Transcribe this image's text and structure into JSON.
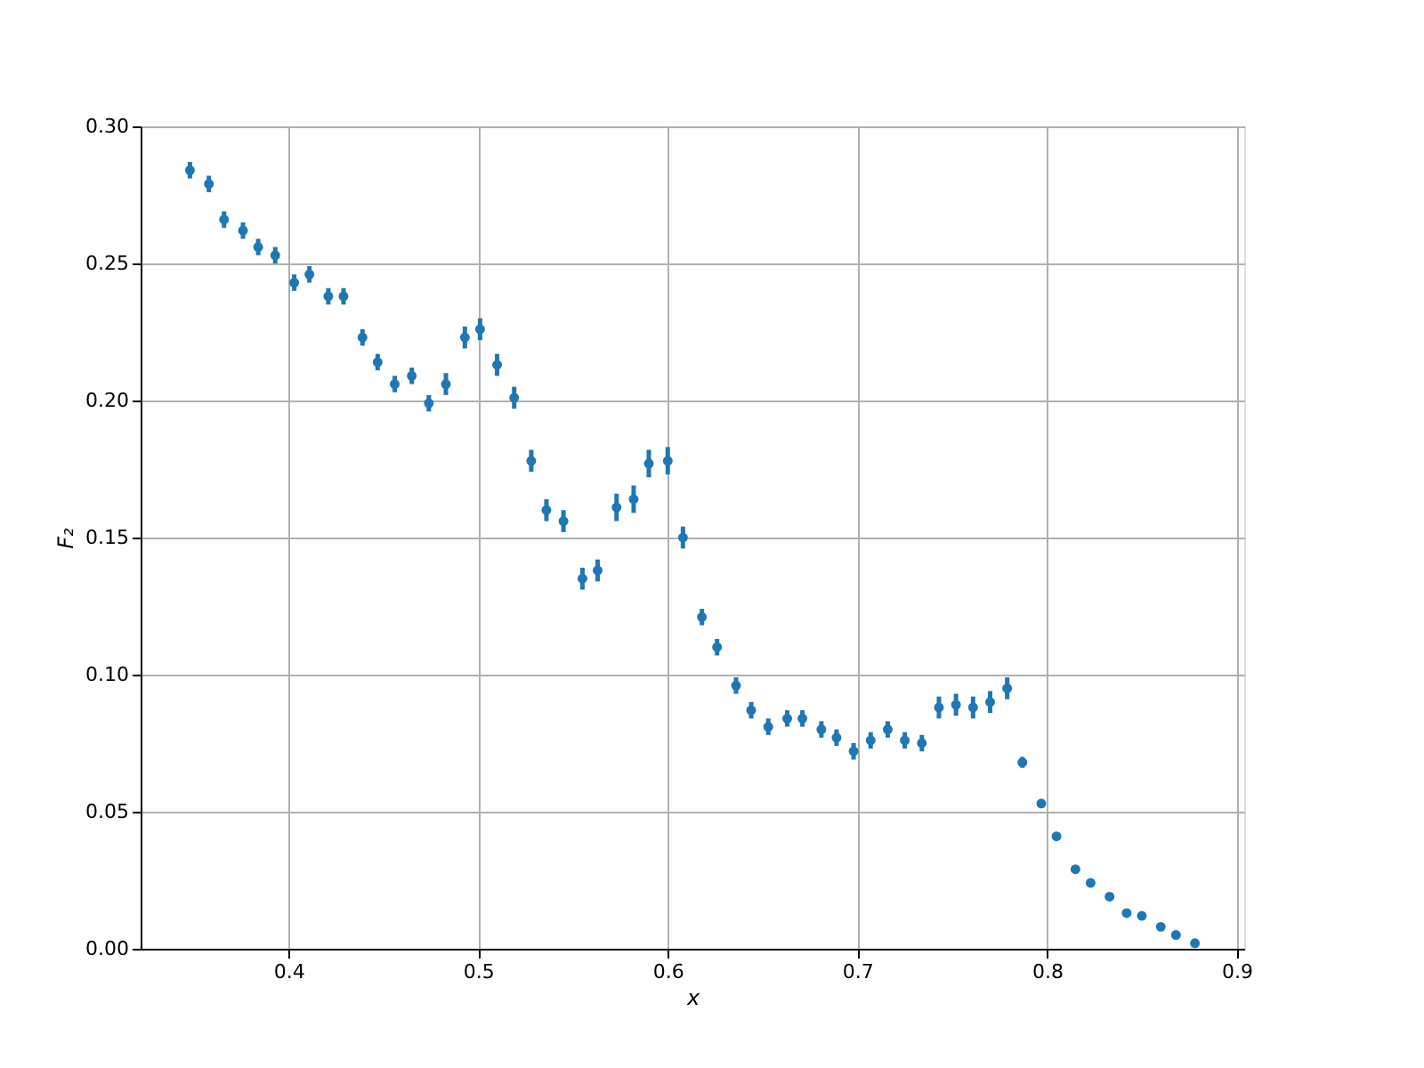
{
  "chart_data": {
    "type": "scatter",
    "xlabel": "x",
    "ylabel": "F₂",
    "x": [
      0.348,
      0.358,
      0.366,
      0.376,
      0.384,
      0.393,
      0.403,
      0.411,
      0.421,
      0.429,
      0.439,
      0.447,
      0.456,
      0.465,
      0.474,
      0.483,
      0.493,
      0.501,
      0.51,
      0.519,
      0.528,
      0.536,
      0.545,
      0.555,
      0.563,
      0.573,
      0.582,
      0.59,
      0.6,
      0.608,
      0.618,
      0.626,
      0.636,
      0.644,
      0.653,
      0.663,
      0.671,
      0.681,
      0.689,
      0.698,
      0.707,
      0.716,
      0.725,
      0.734,
      0.743,
      0.752,
      0.761,
      0.77,
      0.779,
      0.787,
      0.797,
      0.805,
      0.815,
      0.823,
      0.833,
      0.842,
      0.85,
      0.86,
      0.868,
      0.878
    ],
    "series": [
      {
        "color": "#1f77b4",
        "values": [
          0.284,
          0.279,
          0.266,
          0.262,
          0.256,
          0.253,
          0.243,
          0.246,
          0.238,
          0.238,
          0.223,
          0.214,
          0.206,
          0.209,
          0.199,
          0.206,
          0.223,
          0.226,
          0.213,
          0.201,
          0.178,
          0.16,
          0.156,
          0.135,
          0.138,
          0.161,
          0.164,
          0.177,
          0.178,
          0.15,
          0.121,
          0.11,
          0.096,
          0.087,
          0.081,
          0.084,
          0.084,
          0.08,
          0.077,
          0.072,
          0.076,
          0.08,
          0.076,
          0.075,
          0.088,
          0.089,
          0.088,
          0.09,
          0.095,
          0.068,
          0.053,
          0.041,
          0.029,
          0.024,
          0.019,
          0.013,
          0.012,
          0.008,
          0.005,
          0.002
        ],
        "errors": [
          0.003,
          0.003,
          0.003,
          0.003,
          0.003,
          0.003,
          0.003,
          0.003,
          0.003,
          0.003,
          0.003,
          0.003,
          0.003,
          0.003,
          0.003,
          0.004,
          0.004,
          0.004,
          0.004,
          0.004,
          0.004,
          0.004,
          0.004,
          0.004,
          0.004,
          0.005,
          0.005,
          0.005,
          0.005,
          0.004,
          0.003,
          0.003,
          0.003,
          0.003,
          0.003,
          0.003,
          0.003,
          0.003,
          0.003,
          0.003,
          0.003,
          0.003,
          0.003,
          0.003,
          0.004,
          0.004,
          0.004,
          0.004,
          0.004,
          0.002,
          null,
          null,
          null,
          null,
          null,
          null,
          null,
          null,
          null,
          null
        ]
      }
    ],
    "xlim": [
      0.322,
      0.904
    ],
    "xticks": [
      0.4,
      0.5,
      0.6,
      0.7,
      0.8,
      0.9
    ],
    "ylim": [
      0,
      0.3
    ],
    "yticks": [
      {
        "value": 0,
        "label": "0.00"
      },
      {
        "value": 0.05,
        "label": "0.05"
      },
      {
        "value": 0.1,
        "label": "0.10"
      },
      {
        "value": 0.15,
        "label": "0.15"
      },
      {
        "value": 0.2,
        "label": "0.20"
      },
      {
        "value": 0.25,
        "label": "0.25"
      },
      {
        "value": 0.3,
        "label": "0.30"
      }
    ],
    "grid": true,
    "marker": "circle"
  }
}
